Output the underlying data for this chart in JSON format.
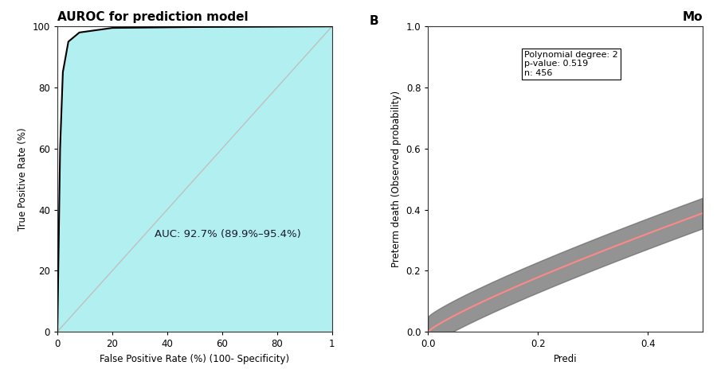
{
  "panel_a_title": "AUROC for prediction model",
  "panel_b_label": "B",
  "panel_b_title": "Mo",
  "auc_text": "AUC: 92.7% (89.9%–95.4%)",
  "xlabel": "False Positive Rate (%) (100- Specificity)",
  "ylabel": "True Positive Rate (%)",
  "xlim": [
    0,
    100
  ],
  "ylim": [
    0,
    100
  ],
  "fill_color": "#b2eff0",
  "diag_color": "#c0c0c0",
  "roc_color": "#000000",
  "background_color": "#ffffff",
  "panel_b_fill_color": "#555555",
  "panel_b_line_color": "#ff6666",
  "annotation_text": "Polynomial degree: 2\np-value: 0.519\nn: 456",
  "panel_b_xlabel": "Predi",
  "panel_b_ylabel": "Preterm death (Observed probability)",
  "figsize": [
    9.0,
    4.74
  ],
  "dpi": 100
}
